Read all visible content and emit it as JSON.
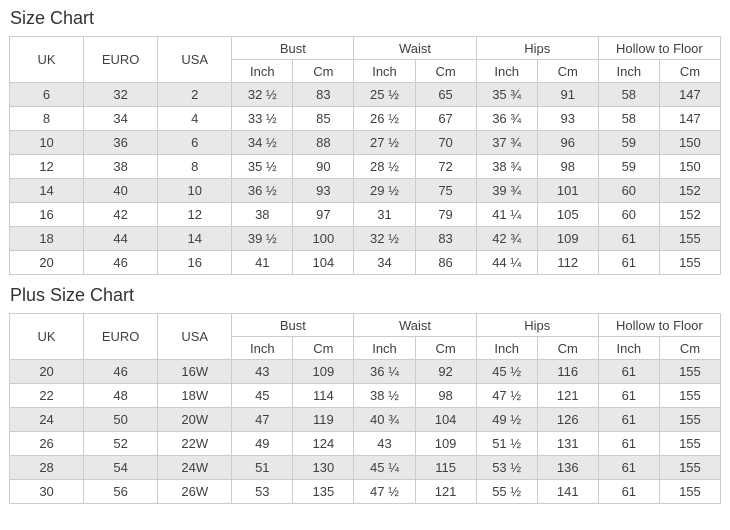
{
  "colors": {
    "background": "#ffffff",
    "row_stripe": "#e8e8e8",
    "table_border": "#cccccc",
    "cell_text": "#404040",
    "title_text": "#333333"
  },
  "chart_data": [
    {
      "type": "table",
      "title": "Size Chart",
      "column_groups": [
        {
          "label": "UK",
          "span": 1
        },
        {
          "label": "EURO",
          "span": 1
        },
        {
          "label": "USA",
          "span": 1
        },
        {
          "label": "Bust",
          "span": 2
        },
        {
          "label": "Waist",
          "span": 2
        },
        {
          "label": "Hips",
          "span": 2
        },
        {
          "label": "Hollow to Floor",
          "span": 2
        }
      ],
      "unit_headers": [
        "Inch",
        "Cm",
        "Inch",
        "Cm",
        "Inch",
        "Cm",
        "Inch",
        "Cm"
      ],
      "rows": [
        [
          "6",
          "32",
          "2",
          "32 ½",
          "83",
          "25 ½",
          "65",
          "35 ¾",
          "91",
          "58",
          "147"
        ],
        [
          "8",
          "34",
          "4",
          "33 ½",
          "85",
          "26 ½",
          "67",
          "36 ¾",
          "93",
          "58",
          "147"
        ],
        [
          "10",
          "36",
          "6",
          "34 ½",
          "88",
          "27 ½",
          "70",
          "37 ¾",
          "96",
          "59",
          "150"
        ],
        [
          "12",
          "38",
          "8",
          "35 ½",
          "90",
          "28 ½",
          "72",
          "38 ¾",
          "98",
          "59",
          "150"
        ],
        [
          "14",
          "40",
          "10",
          "36 ½",
          "93",
          "29 ½",
          "75",
          "39 ¾",
          "101",
          "60",
          "152"
        ],
        [
          "16",
          "42",
          "12",
          "38",
          "97",
          "31",
          "79",
          "41 ¼",
          "105",
          "60",
          "152"
        ],
        [
          "18",
          "44",
          "14",
          "39 ½",
          "100",
          "32 ½",
          "83",
          "42 ¾",
          "109",
          "61",
          "155"
        ],
        [
          "20",
          "46",
          "16",
          "41",
          "104",
          "34",
          "86",
          "44 ¼",
          "112",
          "61",
          "155"
        ]
      ]
    },
    {
      "type": "table",
      "title": "Plus Size Chart",
      "column_groups": [
        {
          "label": "UK",
          "span": 1
        },
        {
          "label": "EURO",
          "span": 1
        },
        {
          "label": "USA",
          "span": 1
        },
        {
          "label": "Bust",
          "span": 2
        },
        {
          "label": "Waist",
          "span": 2
        },
        {
          "label": "Hips",
          "span": 2
        },
        {
          "label": "Hollow to Floor",
          "span": 2
        }
      ],
      "unit_headers": [
        "Inch",
        "Cm",
        "Inch",
        "Cm",
        "Inch",
        "Cm",
        "Inch",
        "Cm"
      ],
      "rows": [
        [
          "20",
          "46",
          "16W",
          "43",
          "109",
          "36 ¼",
          "92",
          "45 ½",
          "116",
          "61",
          "155"
        ],
        [
          "22",
          "48",
          "18W",
          "45",
          "114",
          "38 ½",
          "98",
          "47 ½",
          "121",
          "61",
          "155"
        ],
        [
          "24",
          "50",
          "20W",
          "47",
          "119",
          "40 ¾",
          "104",
          "49 ½",
          "126",
          "61",
          "155"
        ],
        [
          "26",
          "52",
          "22W",
          "49",
          "124",
          "43",
          "109",
          "51 ½",
          "131",
          "61",
          "155"
        ],
        [
          "28",
          "54",
          "24W",
          "51",
          "130",
          "45 ¼",
          "115",
          "53 ½",
          "136",
          "61",
          "155"
        ],
        [
          "30",
          "56",
          "26W",
          "53",
          "135",
          "47 ½",
          "121",
          "55 ½",
          "141",
          "61",
          "155"
        ]
      ]
    }
  ]
}
